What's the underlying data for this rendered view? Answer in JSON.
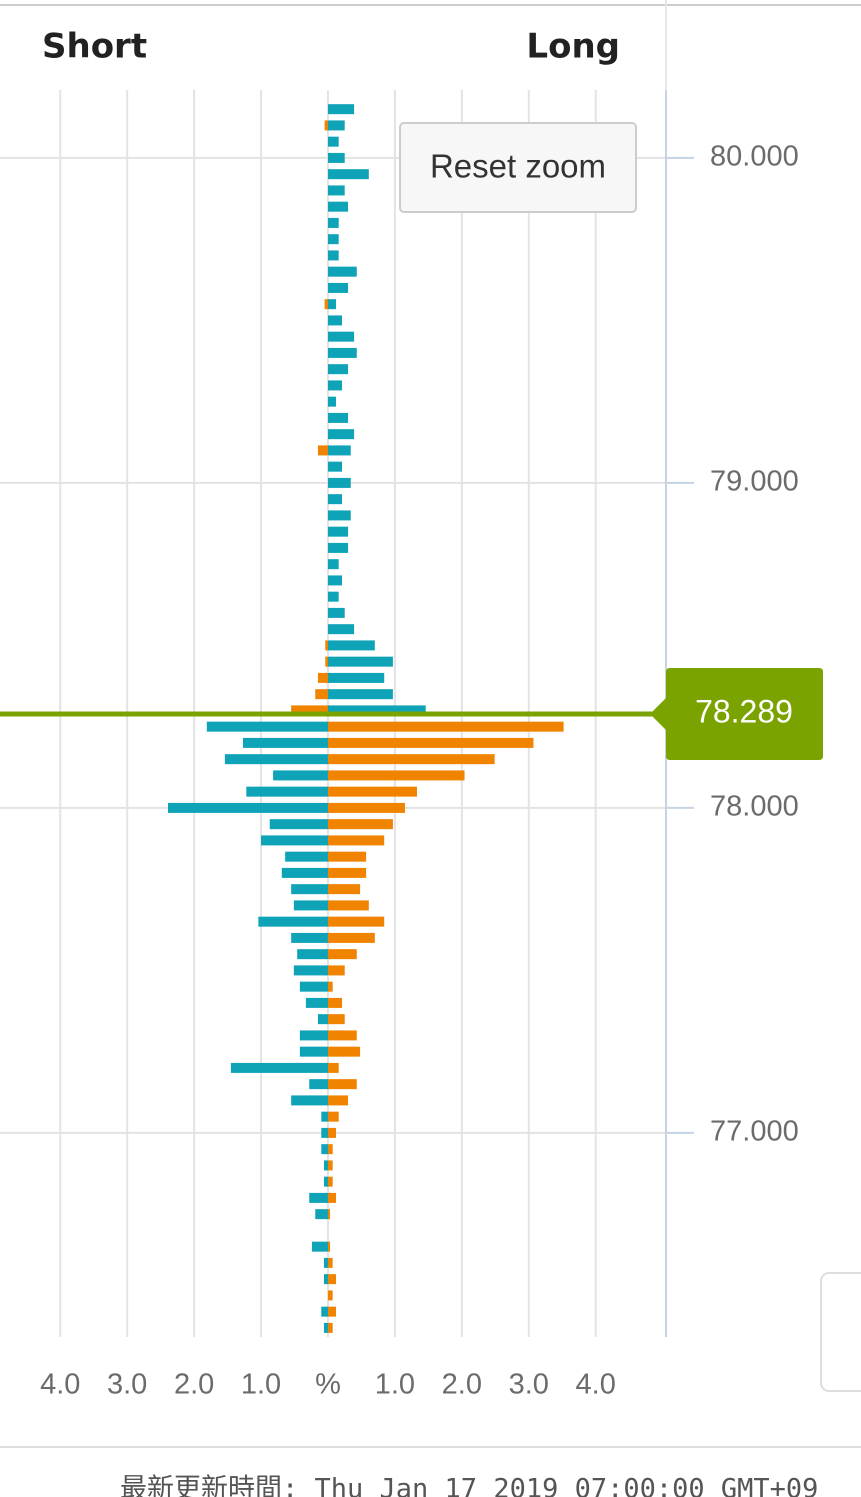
{
  "chart_data": {
    "type": "butterfly-bar",
    "short_label": "Short",
    "long_label": "Long",
    "reset_zoom": "Reset zoom",
    "footer": "最新更新時間: Thu Jan 17 2019 07:00:00 GMT+09",
    "current_price": {
      "value": 78.289,
      "label": "78.289",
      "color": "#7aa300"
    },
    "prices": [
      80.15,
      80.1,
      80.05,
      80.0,
      79.95,
      79.9,
      79.85,
      79.8,
      79.75,
      79.7,
      79.65,
      79.6,
      79.55,
      79.5,
      79.45,
      79.4,
      79.35,
      79.3,
      79.25,
      79.2,
      79.15,
      79.1,
      79.05,
      79.0,
      78.95,
      78.9,
      78.85,
      78.8,
      78.75,
      78.7,
      78.65,
      78.6,
      78.55,
      78.5,
      78.45,
      78.4,
      78.35,
      78.3,
      78.25,
      78.2,
      78.15,
      78.1,
      78.05,
      78.0,
      77.95,
      77.9,
      77.85,
      77.8,
      77.75,
      77.7,
      77.65,
      77.6,
      77.55,
      77.5,
      77.45,
      77.4,
      77.35,
      77.3,
      77.25,
      77.2,
      77.15,
      77.1,
      77.05,
      77.0,
      76.95,
      76.9,
      76.85,
      76.8,
      76.75,
      76.7,
      76.65,
      76.6,
      76.55,
      76.5,
      76.45,
      76.4
    ],
    "series": [
      {
        "side": "short",
        "color_above": "#f08300",
        "color_below": "#0fa3b8",
        "values": [
          null,
          0.05,
          null,
          null,
          null,
          null,
          null,
          null,
          null,
          null,
          null,
          null,
          0.05,
          null,
          null,
          null,
          null,
          null,
          null,
          null,
          null,
          0.15,
          null,
          null,
          null,
          null,
          null,
          null,
          null,
          null,
          null,
          null,
          null,
          0.04,
          0.04,
          0.15,
          0.19,
          0.55,
          1.81,
          1.27,
          1.54,
          0.82,
          1.22,
          2.39,
          0.87,
          1.0,
          0.64,
          0.69,
          0.55,
          0.51,
          1.04,
          0.55,
          0.46,
          0.51,
          0.42,
          0.33,
          0.15,
          0.42,
          0.42,
          1.45,
          0.28,
          0.55,
          0.1,
          0.1,
          0.1,
          0.06,
          0.06,
          0.28,
          0.19,
          null,
          0.24,
          0.06,
          0.06,
          null,
          0.1,
          0.06
        ]
      },
      {
        "side": "long",
        "color_above": "#0fa3b8",
        "color_below": "#f08300",
        "values": [
          0.39,
          0.25,
          0.16,
          0.25,
          0.61,
          0.25,
          0.3,
          0.16,
          0.16,
          0.16,
          0.43,
          0.3,
          0.12,
          0.21,
          0.39,
          0.43,
          0.3,
          0.21,
          0.12,
          0.3,
          0.39,
          0.34,
          0.21,
          0.34,
          0.21,
          0.34,
          0.3,
          0.3,
          0.16,
          0.21,
          0.16,
          0.25,
          0.39,
          0.7,
          0.97,
          0.84,
          0.97,
          1.46,
          3.52,
          3.07,
          2.49,
          2.04,
          1.33,
          1.15,
          0.97,
          0.84,
          0.57,
          0.57,
          0.48,
          0.61,
          0.84,
          0.7,
          0.43,
          0.25,
          0.07,
          0.21,
          0.25,
          0.43,
          0.48,
          0.16,
          0.43,
          0.3,
          0.16,
          0.12,
          0.07,
          0.07,
          0.07,
          0.12,
          0.03,
          null,
          0.03,
          0.07,
          0.12,
          0.07,
          0.12,
          0.07
        ]
      }
    ],
    "xlim": [
      -4.9,
      5.05
    ],
    "xticks": [
      {
        "value": -4,
        "label": "4.0"
      },
      {
        "value": -3,
        "label": "3.0"
      },
      {
        "value": -2,
        "label": "2.0"
      },
      {
        "value": -1,
        "label": "1.0"
      },
      {
        "value": 0,
        "label": "%"
      },
      {
        "value": 1,
        "label": "1.0"
      },
      {
        "value": 2,
        "label": "2.0"
      },
      {
        "value": 3,
        "label": "3.0"
      },
      {
        "value": 4,
        "label": "4.0"
      }
    ],
    "ylim": [
      76.372,
      80.209
    ],
    "yticks": [
      {
        "value": 80,
        "label": "80.000"
      },
      {
        "value": 79,
        "label": "79.000"
      },
      {
        "value": 78,
        "label": "78.000"
      },
      {
        "value": 77,
        "label": "77.000"
      }
    ],
    "grid": true
  }
}
